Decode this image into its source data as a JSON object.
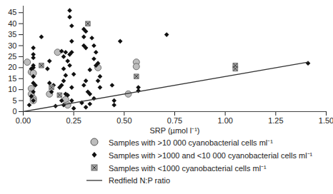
{
  "chart_data": {
    "type": "scatter",
    "x_label": "SRP (µmol l⁻¹)",
    "xlim": [
      0,
      1.5
    ],
    "xticks": [
      {
        "value": 0,
        "label": "0.00"
      },
      {
        "value": 0.25,
        "label": "0.25"
      },
      {
        "value": 0.5,
        "label": "0.50"
      },
      {
        "value": 0.75,
        "label": "0.75"
      },
      {
        "value": 1,
        "label": "1.00"
      },
      {
        "value": 1.25,
        "label": "1.25"
      },
      {
        "value": 1.5,
        "label": "1.50"
      }
    ],
    "ylim": [
      0,
      48
    ],
    "yticks": [
      0,
      5,
      10,
      15,
      20,
      25,
      30,
      35,
      40,
      45
    ],
    "legend": "bottom",
    "series": [
      {
        "name": "Samples with >10 000 cyanobacterial cells ml⁻¹",
        "marker": "circle",
        "color": "#bdbdbd",
        "x": [
          0.02,
          0.04,
          0.05,
          0.04,
          0.04,
          0.05,
          0.05,
          0.17,
          0.13,
          0.21,
          0.22,
          0.37,
          0.52,
          0.56,
          0.56
        ],
        "values": [
          22.5,
          18,
          17.5,
          10.5,
          8,
          6,
          5,
          27,
          8,
          5.5,
          3,
          20,
          8,
          22.5,
          20.5
        ]
      },
      {
        "name": "Samples with >1000 and <10 000 cyanobacterial cells ml⁻¹",
        "marker": "diamond",
        "color": "#111111",
        "x": [
          0.05,
          0.05,
          0.05,
          0.05,
          0.05,
          0.04,
          0.05,
          0.05,
          0.06,
          0.05,
          0.04,
          0.05,
          0.03,
          0.09,
          0.13,
          0.12,
          0.13,
          0.15,
          0.14,
          0.16,
          0.19,
          0.21,
          0.2,
          0.22,
          0.23,
          0.2,
          0.21,
          0.2,
          0.19,
          0.18,
          0.21,
          0.22,
          0.19,
          0.2,
          0.23,
          0.23,
          0.24,
          0.24,
          0.24,
          0.23,
          0.25,
          0.24,
          0.24,
          0.25,
          0.3,
          0.31,
          0.3,
          0.3,
          0.31,
          0.34,
          0.35,
          0.36,
          0.35,
          0.37,
          0.36,
          0.33,
          0.31,
          0.3,
          0.32,
          0.33,
          0.35,
          0.38,
          0.38,
          0.37,
          0.29,
          0.33,
          0.31,
          0.44,
          0.45,
          0.45,
          0.48,
          0.57,
          0.57,
          0.71,
          1.41
        ],
        "values": [
          29,
          26,
          24.5,
          21,
          20,
          19.5,
          16,
          13,
          12,
          9,
          7,
          5,
          3,
          34,
          23,
          19.5,
          13,
          12,
          9,
          2.5,
          27.5,
          27,
          25,
          23,
          26,
          19.5,
          16.5,
          14,
          12,
          11,
          8,
          7.5,
          5,
          3,
          46,
          43,
          39,
          32,
          27,
          21,
          17,
          11,
          5,
          1.5,
          37.5,
          36.5,
          34,
          30,
          29,
          33.5,
          30,
          27,
          24,
          22,
          21,
          19,
          14,
          12,
          9,
          8,
          6,
          11,
          16,
          14,
          4,
          3.5,
          2,
          12,
          5,
          3,
          32,
          11,
          9.5,
          35,
          22
        ]
      },
      {
        "name": "Samples with <1000 cyanobacterial cells ml⁻¹",
        "marker": "square-x",
        "color": "#a8a8a8",
        "x": [
          0.09,
          0.14,
          0.18,
          0.32,
          0.56,
          1.05,
          1.05
        ],
        "values": [
          21,
          11,
          7.5,
          40,
          16,
          21,
          19.5
        ]
      },
      {
        "name": "Redfield N:P ratio",
        "type": "line",
        "line_style": "solid",
        "color": "#333333",
        "x": [
          0,
          1.41
        ],
        "values": [
          0,
          22.5
        ]
      }
    ]
  }
}
